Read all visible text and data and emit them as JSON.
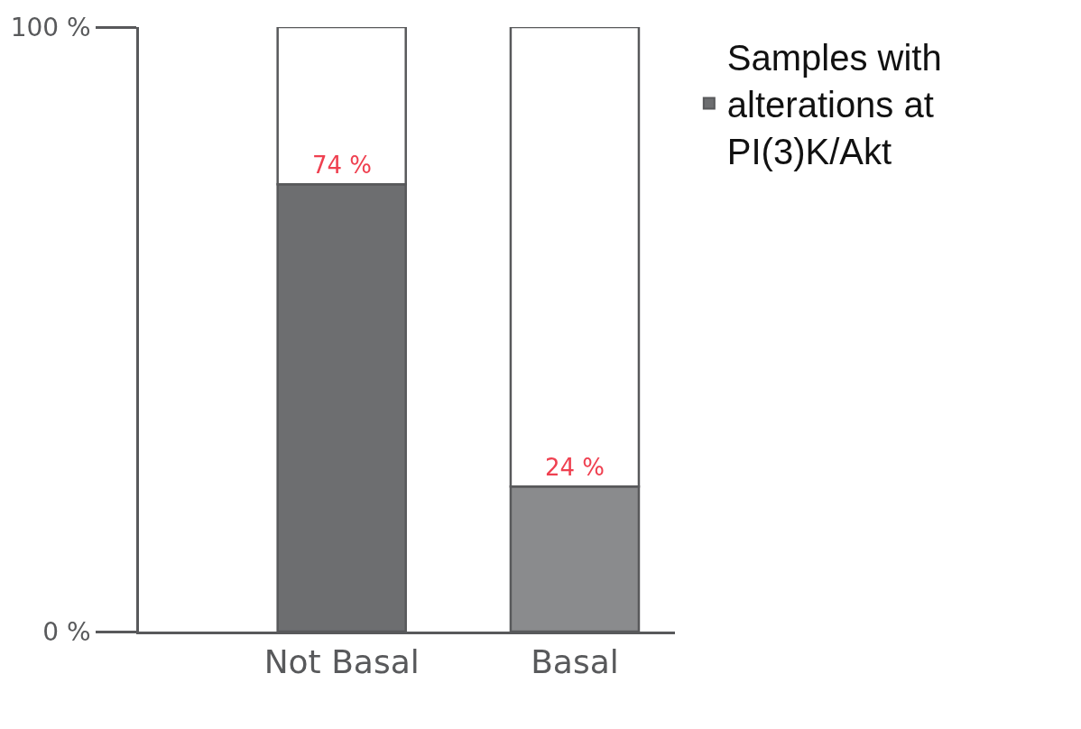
{
  "chart_data": {
    "type": "bar",
    "stacked": true,
    "categories": [
      "Not Basal",
      "Basal"
    ],
    "series": [
      {
        "name": "Samples with alterations at PI(3)K/Akt",
        "colors": [
          "#6d6e70",
          "#8a8b8d"
        ],
        "values": [
          74,
          24
        ],
        "value_labels": [
          "74 %",
          "24 %"
        ]
      },
      {
        "color": "#ffffff",
        "values": [
          26,
          76
        ]
      }
    ],
    "ylim": [
      0,
      100
    ],
    "yticks": [
      {
        "value": 0,
        "label": "0 %"
      },
      {
        "value": 100,
        "label": "100 %"
      }
    ],
    "legend": "top right"
  }
}
